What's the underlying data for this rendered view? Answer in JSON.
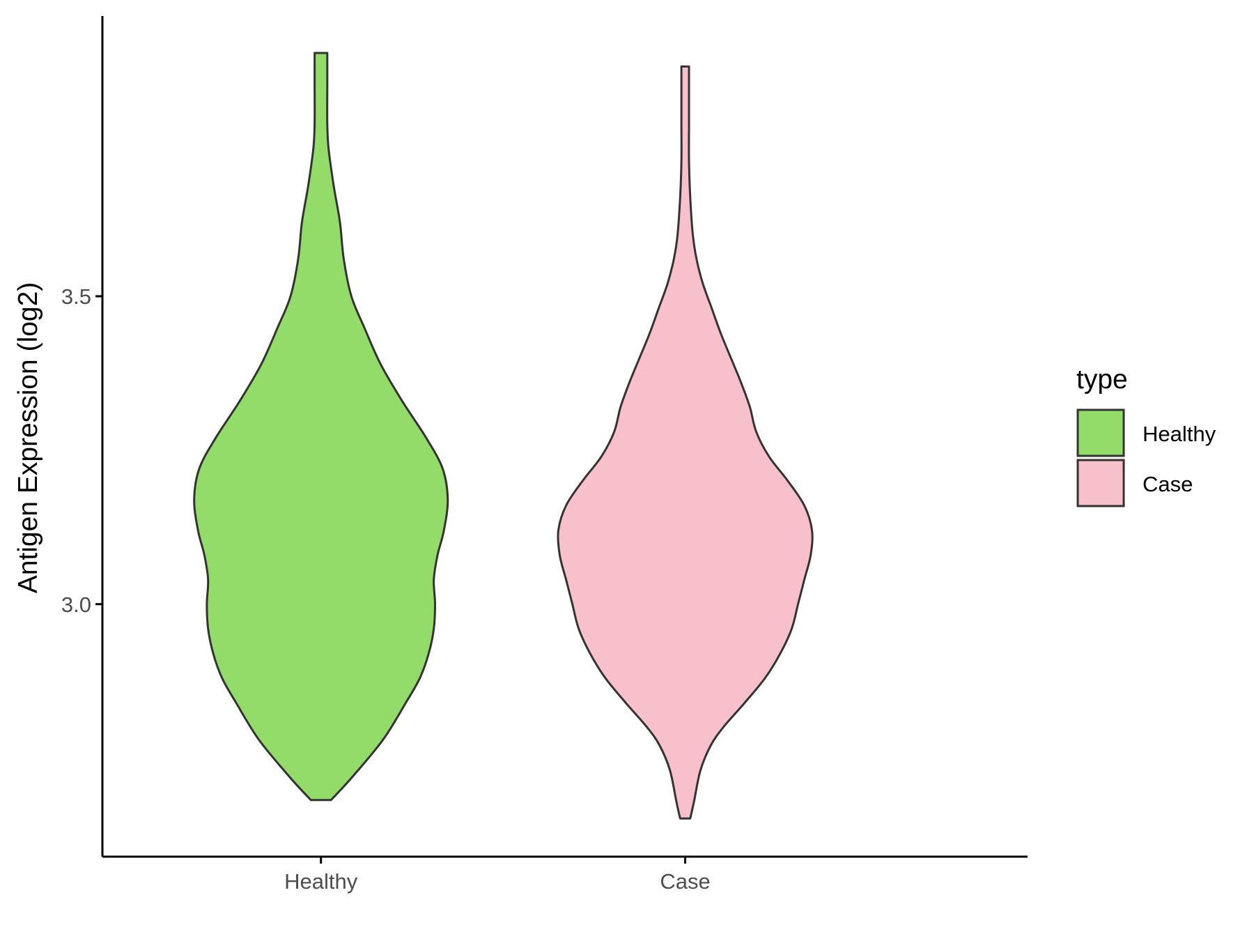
{
  "chart_data": {
    "type": "violin",
    "categories": [
      "Healthy",
      "Case"
    ],
    "ylabel": "Antigen Expression (log2)",
    "xlabel": "",
    "ylim": [
      2.59,
      3.955
    ],
    "yticks": [
      3.0,
      3.5
    ],
    "ytick_labels": [
      "3.0",
      "3.5"
    ],
    "grid": false,
    "legend": {
      "title": "type",
      "position": "right",
      "entries": [
        {
          "label": "Healthy",
          "color": "#93dc6a"
        },
        {
          "label": "Case",
          "color": "#f7c0cb"
        }
      ]
    },
    "series": [
      {
        "category": "Healthy",
        "color": "#93dc6a",
        "min": 2.682,
        "max": 3.895,
        "density": [
          [
            2.682,
            0.08
          ],
          [
            2.72,
            0.25
          ],
          [
            2.78,
            0.49
          ],
          [
            2.84,
            0.67
          ],
          [
            2.88,
            0.78
          ],
          [
            2.92,
            0.85
          ],
          [
            2.96,
            0.89
          ],
          [
            3.0,
            0.9
          ],
          [
            3.04,
            0.89
          ],
          [
            3.08,
            0.92
          ],
          [
            3.12,
            0.97
          ],
          [
            3.17,
            1.0
          ],
          [
            3.22,
            0.96
          ],
          [
            3.27,
            0.83
          ],
          [
            3.33,
            0.64
          ],
          [
            3.39,
            0.47
          ],
          [
            3.45,
            0.34
          ],
          [
            3.5,
            0.24
          ],
          [
            3.56,
            0.18
          ],
          [
            3.62,
            0.15
          ],
          [
            3.68,
            0.1
          ],
          [
            3.74,
            0.06
          ],
          [
            3.78,
            0.05
          ],
          [
            3.84,
            0.05
          ],
          [
            3.895,
            0.05
          ]
        ]
      },
      {
        "category": "Case",
        "color": "#f7c0cb",
        "min": 2.652,
        "max": 3.873,
        "density": [
          [
            2.652,
            0.04
          ],
          [
            2.68,
            0.07
          ],
          [
            2.73,
            0.12
          ],
          [
            2.77,
            0.2
          ],
          [
            2.8,
            0.3
          ],
          [
            2.84,
            0.47
          ],
          [
            2.88,
            0.63
          ],
          [
            2.92,
            0.75
          ],
          [
            2.96,
            0.84
          ],
          [
            3.0,
            0.89
          ],
          [
            3.04,
            0.94
          ],
          [
            3.08,
            0.99
          ],
          [
            3.12,
            1.0
          ],
          [
            3.16,
            0.94
          ],
          [
            3.2,
            0.81
          ],
          [
            3.24,
            0.66
          ],
          [
            3.28,
            0.56
          ],
          [
            3.32,
            0.51
          ],
          [
            3.36,
            0.44
          ],
          [
            3.4,
            0.36
          ],
          [
            3.44,
            0.28
          ],
          [
            3.48,
            0.21
          ],
          [
            3.52,
            0.14
          ],
          [
            3.56,
            0.09
          ],
          [
            3.6,
            0.06
          ],
          [
            3.66,
            0.04
          ],
          [
            3.72,
            0.03
          ],
          [
            3.78,
            0.03
          ],
          [
            3.84,
            0.03
          ],
          [
            3.873,
            0.03
          ]
        ]
      }
    ]
  }
}
